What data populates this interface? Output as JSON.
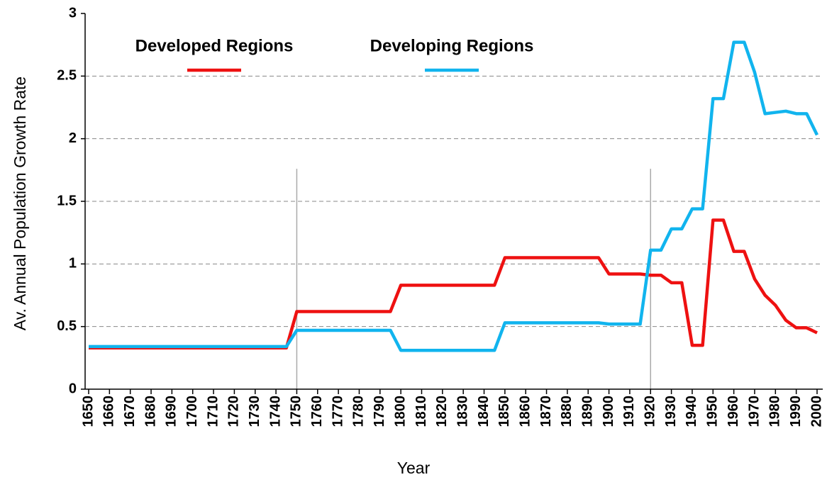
{
  "chart_data": {
    "type": "line",
    "x_label": "Year",
    "y_label": "Av. Annual Population Growth Rate",
    "x": [
      1650,
      1745,
      1750,
      1795,
      1800,
      1845,
      1850,
      1895,
      1900,
      1915,
      1920,
      1925,
      1930,
      1935,
      1940,
      1945,
      1950,
      1955,
      1960,
      1965,
      1970,
      1975,
      1980,
      1985,
      1990,
      1995,
      2000
    ],
    "series": [
      {
        "name": "Developed Regions",
        "color": "#ee1111",
        "values": [
          0.33,
          0.33,
          0.62,
          0.62,
          0.83,
          0.83,
          1.05,
          1.05,
          0.92,
          0.92,
          0.91,
          0.91,
          0.85,
          0.85,
          0.35,
          0.35,
          1.35,
          1.35,
          1.1,
          1.1,
          0.88,
          0.75,
          0.67,
          0.55,
          0.49,
          0.49,
          0.45
        ]
      },
      {
        "name": "Developing Regions",
        "color": "#11b4ee",
        "values": [
          0.34,
          0.34,
          0.47,
          0.47,
          0.31,
          0.31,
          0.53,
          0.53,
          0.52,
          0.52,
          1.11,
          1.11,
          1.28,
          1.28,
          1.44,
          1.44,
          2.32,
          2.32,
          2.77,
          2.77,
          2.53,
          2.2,
          2.21,
          2.22,
          2.2,
          2.2,
          2.03
        ]
      }
    ],
    "xlim": [
      1650,
      2000
    ],
    "xticks": [
      1650,
      1660,
      1670,
      1680,
      1690,
      1700,
      1710,
      1720,
      1730,
      1740,
      1750,
      1760,
      1770,
      1780,
      1790,
      1800,
      1810,
      1820,
      1830,
      1840,
      1850,
      1860,
      1870,
      1880,
      1890,
      1900,
      1910,
      1920,
      1930,
      1940,
      1950,
      1960,
      1970,
      1980,
      1990,
      2000
    ],
    "ylim": [
      0,
      3
    ],
    "yticks": [
      0,
      0.5,
      1,
      1.5,
      2,
      2.5,
      3
    ],
    "grid": true,
    "reference_lines": [
      {
        "x": 1750,
        "y": [
          0,
          1.76
        ]
      },
      {
        "x": 1920,
        "y": [
          0,
          1.76
        ]
      }
    ]
  }
}
